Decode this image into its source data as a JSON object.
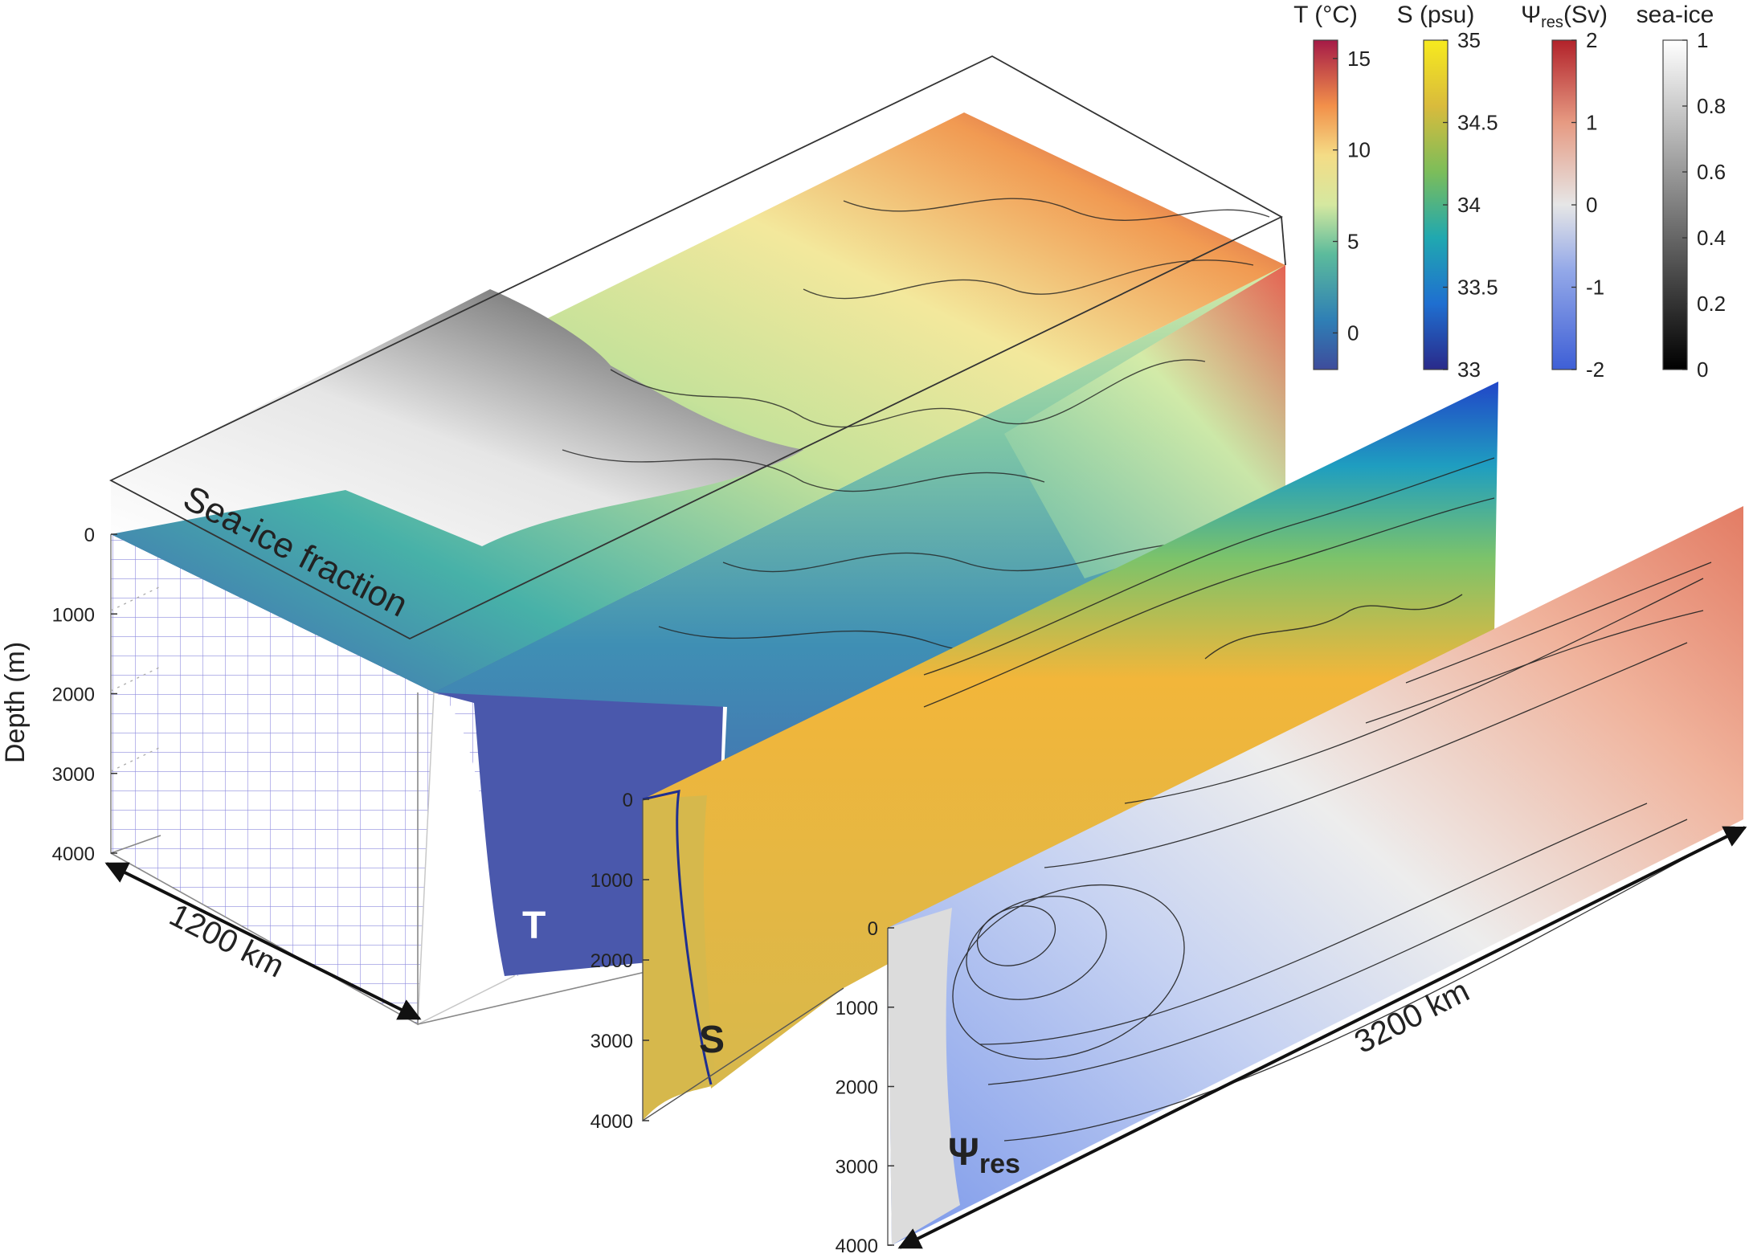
{
  "colorbars": [
    {
      "title": "T (°C)",
      "ticks": [
        "15",
        "10",
        "5",
        "0"
      ]
    },
    {
      "title": "S (psu)",
      "ticks": [
        "35",
        "34.5",
        "34",
        "33.5",
        "33"
      ]
    },
    {
      "title_main": "Ψ",
      "title_sub": "res",
      "title_unit": "(Sv)",
      "ticks": [
        "2",
        "1",
        "0",
        "-1",
        "-2"
      ]
    },
    {
      "title": "sea-ice",
      "ticks": [
        "1",
        "0.8",
        "0.6",
        "0.4",
        "0.2",
        "0"
      ]
    }
  ],
  "depth_axis": {
    "label": "Depth (m)",
    "ticks": [
      "0",
      "1000",
      "2000",
      "3000",
      "4000"
    ]
  },
  "s_depth_ticks": [
    "0",
    "1000",
    "2000",
    "3000",
    "4000"
  ],
  "psi_depth_ticks": [
    "0",
    "1000",
    "2000",
    "3000",
    "4000"
  ],
  "labels": {
    "sea_ice": "Sea-ice fraction",
    "width": "1200 km",
    "length": "3200 km",
    "T": "T",
    "S": "S",
    "psi_main": "Ψ",
    "psi_sub": "res"
  },
  "colors": {
    "cold": "#4a5aae",
    "warm": "#b3203e",
    "salt_high": "#f5e21f",
    "salt_mid": "#d6b34c",
    "psi_neg": "#6e8fe8",
    "psi_pos": "#d9806a"
  }
}
